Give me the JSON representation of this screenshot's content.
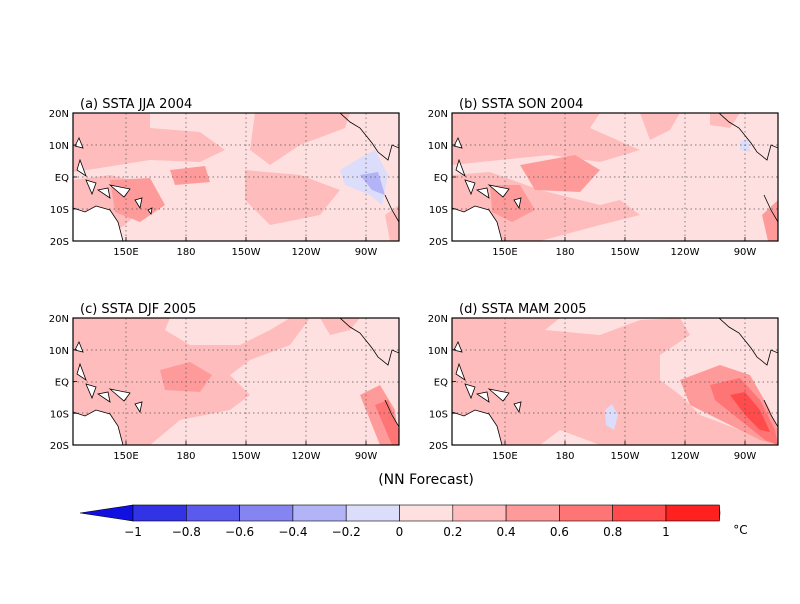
{
  "panels": [
    {
      "title": "(a) SSTA JJA 2004"
    },
    {
      "title": "(b) SSTA SON 2004"
    },
    {
      "title": "(c) SSTA DJF 2005"
    },
    {
      "title": "(d) SSTA MAM 2005"
    }
  ],
  "lat_labels": [
    "20N",
    "10N",
    "EQ",
    "10S",
    "20S"
  ],
  "lon_labels": [
    "150E",
    "180",
    "150W",
    "120W",
    "90W"
  ],
  "subtitle": "(NN Forecast)",
  "colorbar": {
    "tick_labels": [
      "−1",
      "−0.8",
      "−0.6",
      "−0.4",
      "−0.2",
      "0",
      "0.2",
      "0.4",
      "0.6",
      "0.8",
      "1"
    ],
    "unit": "°C",
    "colors": [
      "#3333e6",
      "#5a5aee",
      "#8585f2",
      "#b3b3f8",
      "#dcdcfb",
      "#ffe0e0",
      "#ffbcbc",
      "#ff9a9a",
      "#ff7474",
      "#ff4b4b",
      "#ff2020"
    ],
    "left_arrow_color": "#1010e0",
    "right_arrow_color": "#e00000"
  }
}
